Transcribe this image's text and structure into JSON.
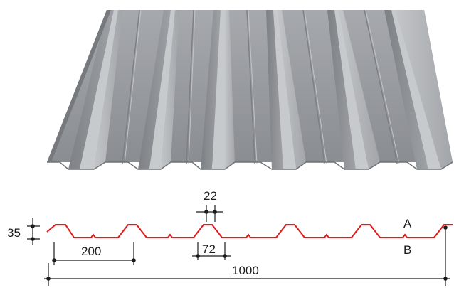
{
  "labels": {
    "dim_height": "35",
    "dim_pitch": "200",
    "dim_top_width": "22",
    "dim_bottom_width": "72",
    "dim_total_width": "1000",
    "side_a": "A",
    "side_b": "B"
  },
  "colors": {
    "sheet_base": "#8f9296",
    "sheet_light": "#b4b7bb",
    "sheet_dark": "#6e7175",
    "profile_line": "#e01b1b",
    "dimension_line": "#1a1a1a"
  }
}
